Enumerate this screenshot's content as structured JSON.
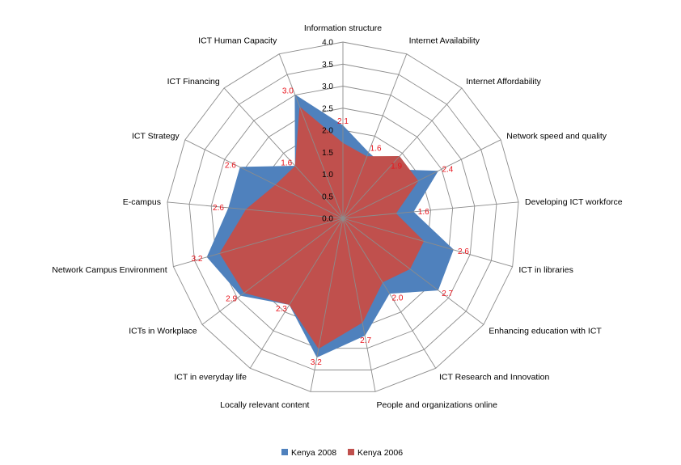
{
  "chart_data": {
    "type": "radar",
    "title": "",
    "categories": [
      "Information structure",
      "Internet Availability",
      "Internet  Affordability",
      "Network speed and quality",
      "Developing ICT workforce",
      "ICT in libraries",
      "Enhancing education with ICT",
      "ICT Research and Innovation",
      "People and organizations online",
      "Locally relevant content",
      "ICT in everyday life",
      "ICTs in Workplace",
      "Network Campus Environment",
      "E-campus",
      "ICT Strategy",
      "ICT Financing",
      "ICT Human Capacity"
    ],
    "rlim": [
      0,
      4
    ],
    "ticks": [
      "0.0",
      "0.5",
      "1.0",
      "1.5",
      "2.0",
      "2.5",
      "3.0",
      "3.5",
      "4.0"
    ],
    "series": [
      {
        "name": "Kenya 2008",
        "color": "#4f81bd",
        "values": [
          2.1,
          1.6,
          1.5,
          2.4,
          1.6,
          2.6,
          2.7,
          2.0,
          2.7,
          3.2,
          2.3,
          2.9,
          3.2,
          2.6,
          2.6,
          1.6,
          3.0
        ]
      },
      {
        "name": "Kenya 2006",
        "color": "#c0504d",
        "values": [
          1.7,
          1.5,
          1.9,
          1.9,
          1.2,
          1.9,
          1.9,
          1.7,
          2.4,
          3.0,
          2.3,
          2.8,
          2.9,
          2.2,
          1.7,
          1.6,
          2.7
        ]
      }
    ],
    "data_labels": [
      "2.1",
      "1.6",
      "1.9",
      "2.4",
      "1.6",
      "2.6",
      "2.7",
      "2.0",
      "2.7",
      "3.2",
      "2.3",
      "2.9",
      "3.2",
      "2.6",
      "2.6",
      "1.6",
      "3.0"
    ],
    "legend": {
      "position": "bottom",
      "entries": [
        "Kenya 2008",
        "Kenya 2006"
      ]
    },
    "grid": true
  }
}
